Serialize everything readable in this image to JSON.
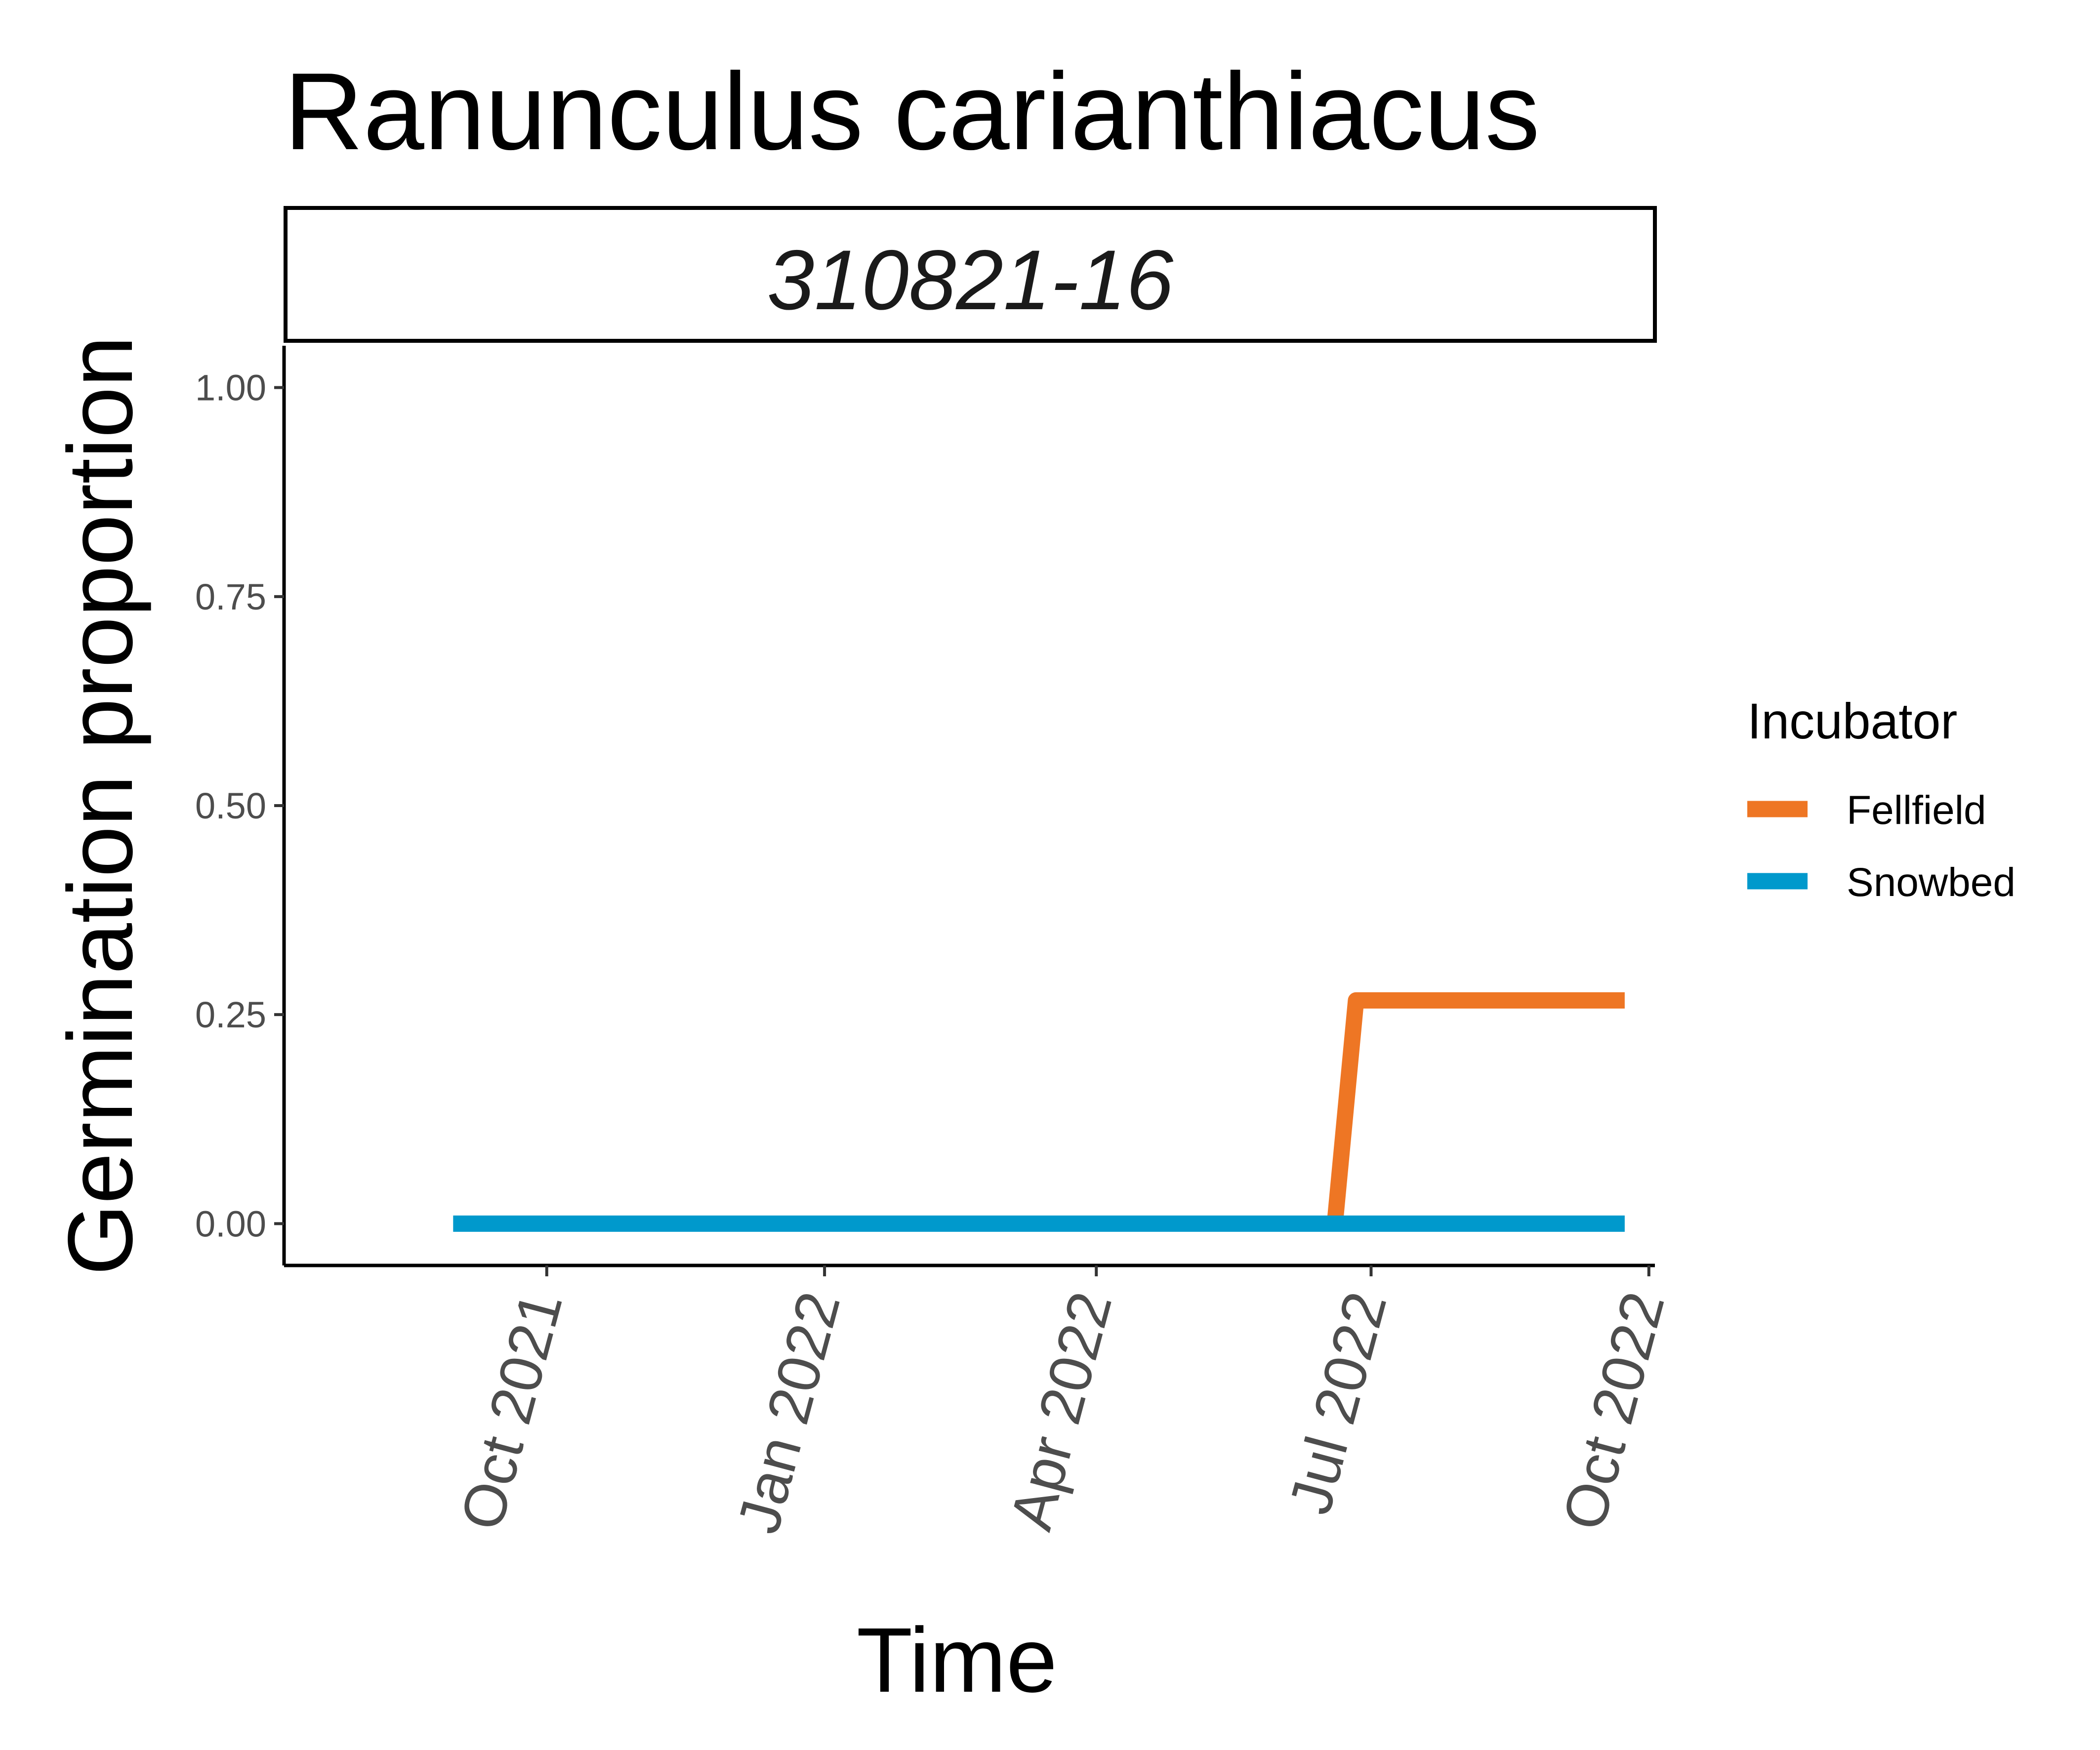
{
  "chart_data": {
    "type": "line",
    "title": "Ranunculus carianthiacus",
    "panel": "310821-16",
    "xlabel": "Time",
    "ylabel": "Germination proportion",
    "xlim": [
      "2021-07-06",
      "2022-10-03"
    ],
    "ylim": [
      -0.05,
      1.05
    ],
    "x_ticks": [
      {
        "date": "2021-10-01",
        "label": "Oct 2021"
      },
      {
        "date": "2022-01-01",
        "label": "Jan 2022"
      },
      {
        "date": "2022-04-01",
        "label": "Apr 2022"
      },
      {
        "date": "2022-07-01",
        "label": "Jul 2022"
      },
      {
        "date": "2022-10-01",
        "label": "Oct 2022"
      }
    ],
    "y_ticks": [
      {
        "value": 0.0,
        "label": "0.00"
      },
      {
        "value": 0.25,
        "label": "0.25"
      },
      {
        "value": 0.5,
        "label": "0.50"
      },
      {
        "value": 0.75,
        "label": "0.75"
      },
      {
        "value": 1.0,
        "label": "1.00"
      }
    ],
    "grid": false,
    "legend": {
      "title": "Incubator",
      "position": "right"
    },
    "series": [
      {
        "name": "Fellfield",
        "color": "#EE7624",
        "points": [
          {
            "x": "2022-06-19",
            "y": 0.0
          },
          {
            "x": "2022-06-26",
            "y": 0.267
          },
          {
            "x": "2022-09-23",
            "y": 0.267
          }
        ]
      },
      {
        "name": "Snowbed",
        "color": "#0099CC",
        "points": [
          {
            "x": "2021-08-31",
            "y": 0.0
          },
          {
            "x": "2022-09-23",
            "y": 0.0
          }
        ]
      }
    ]
  }
}
